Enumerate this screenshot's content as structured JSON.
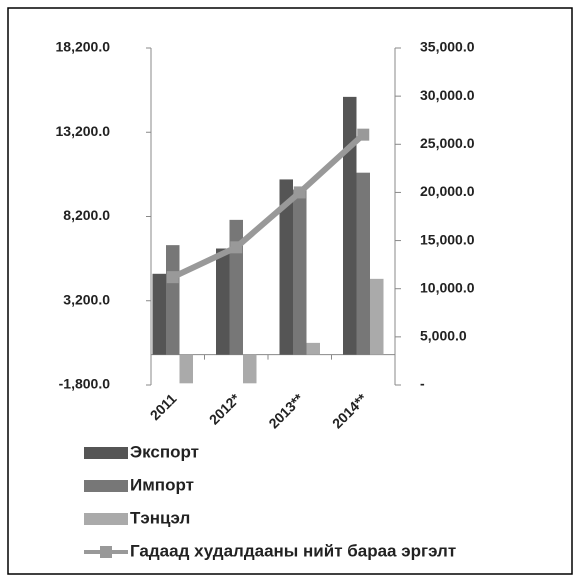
{
  "chart_data": {
    "type": "bar",
    "categories": [
      "2011",
      "2012*",
      "2013**",
      "2014**"
    ],
    "series": [
      {
        "name": "Экспорт",
        "color": "#555555",
        "values": [
          4800,
          6300,
          10400,
          15300
        ]
      },
      {
        "name": "Импорт",
        "color": "#777777",
        "values": [
          6500,
          8000,
          9800,
          10800
        ]
      },
      {
        "name": "Тэнцэл",
        "color": "#aaaaaa",
        "values": [
          -1700,
          -1700,
          700,
          4500
        ]
      },
      {
        "name": "Гадаад худалдааны нийт бараа эргэлт",
        "color": "#999999",
        "axis": "y2",
        "type": "line",
        "values": [
          11200,
          14300,
          20000,
          26000
        ]
      }
    ],
    "ylim": [
      -1800,
      18200
    ],
    "yticks": [
      {
        "value": -1800,
        "label": "-1,800.0"
      },
      {
        "value": 3200,
        "label": "3,200.0"
      },
      {
        "value": 8200,
        "label": "8,200.0"
      },
      {
        "value": 13200,
        "label": "13,200.0"
      },
      {
        "value": 18200,
        "label": "18,200.0"
      }
    ],
    "y2lim": [
      0,
      35000
    ],
    "y2ticks": [
      {
        "value": 0,
        "label": "-"
      },
      {
        "value": 5000,
        "label": "5,000.0"
      },
      {
        "value": 10000,
        "label": "10,000.0"
      },
      {
        "value": 15000,
        "label": "15,000.0"
      },
      {
        "value": 20000,
        "label": "20,000.0"
      },
      {
        "value": 25000,
        "label": "25,000.0"
      },
      {
        "value": 30000,
        "label": "30,000.0"
      },
      {
        "value": 35000,
        "label": "35,000.0"
      }
    ]
  }
}
